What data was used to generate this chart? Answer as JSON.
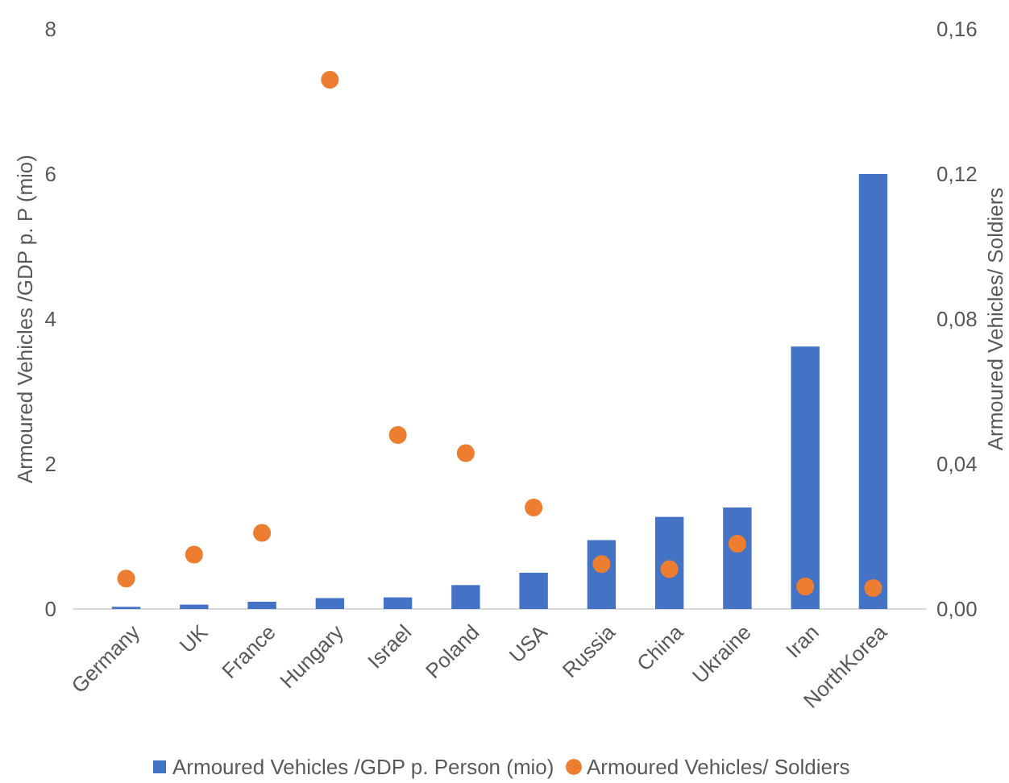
{
  "chart_data": {
    "type": "bar",
    "ylabel": "Armoured Vehicles /GDP p. P (mio)",
    "y2label": "Armoured Vehicles/ Soldiers",
    "categories": [
      "Germany",
      "UK",
      "France",
      "Hungary",
      "Israel",
      "Poland",
      "USA",
      "Russia",
      "China",
      "Ukraine",
      "Iran",
      "NorthKorea"
    ],
    "series": [
      {
        "name": "Armoured Vehicles /GDP p. Person (mio)",
        "color": "#4472c4",
        "values": [
          0.03,
          0.06,
          0.1,
          0.15,
          0.16,
          0.33,
          0.5,
          0.95,
          1.27,
          1.4,
          3.62,
          6.0
        ]
      },
      {
        "name": "Armoured Vehicles/ Soldiers",
        "type": "scatter",
        "axis": "y2",
        "marker": "circle",
        "color": "#ed7d31",
        "values": [
          0.0084,
          0.015,
          0.021,
          0.146,
          0.048,
          0.043,
          0.028,
          0.0124,
          0.011,
          0.018,
          0.0062,
          0.0058
        ]
      }
    ],
    "ylim": [
      0,
      8
    ],
    "yticks": [
      0,
      2,
      4,
      6,
      8
    ],
    "y2lim": [
      0,
      0.16
    ],
    "y2ticks": [
      {
        "value": 0,
        "label": "0,00"
      },
      {
        "value": 0.04,
        "label": "0,04"
      },
      {
        "value": 0.08,
        "label": "0,08"
      },
      {
        "value": 0.12,
        "label": "0,12"
      },
      {
        "value": 0.16,
        "label": "0,16"
      }
    ],
    "legend": "bottom"
  }
}
